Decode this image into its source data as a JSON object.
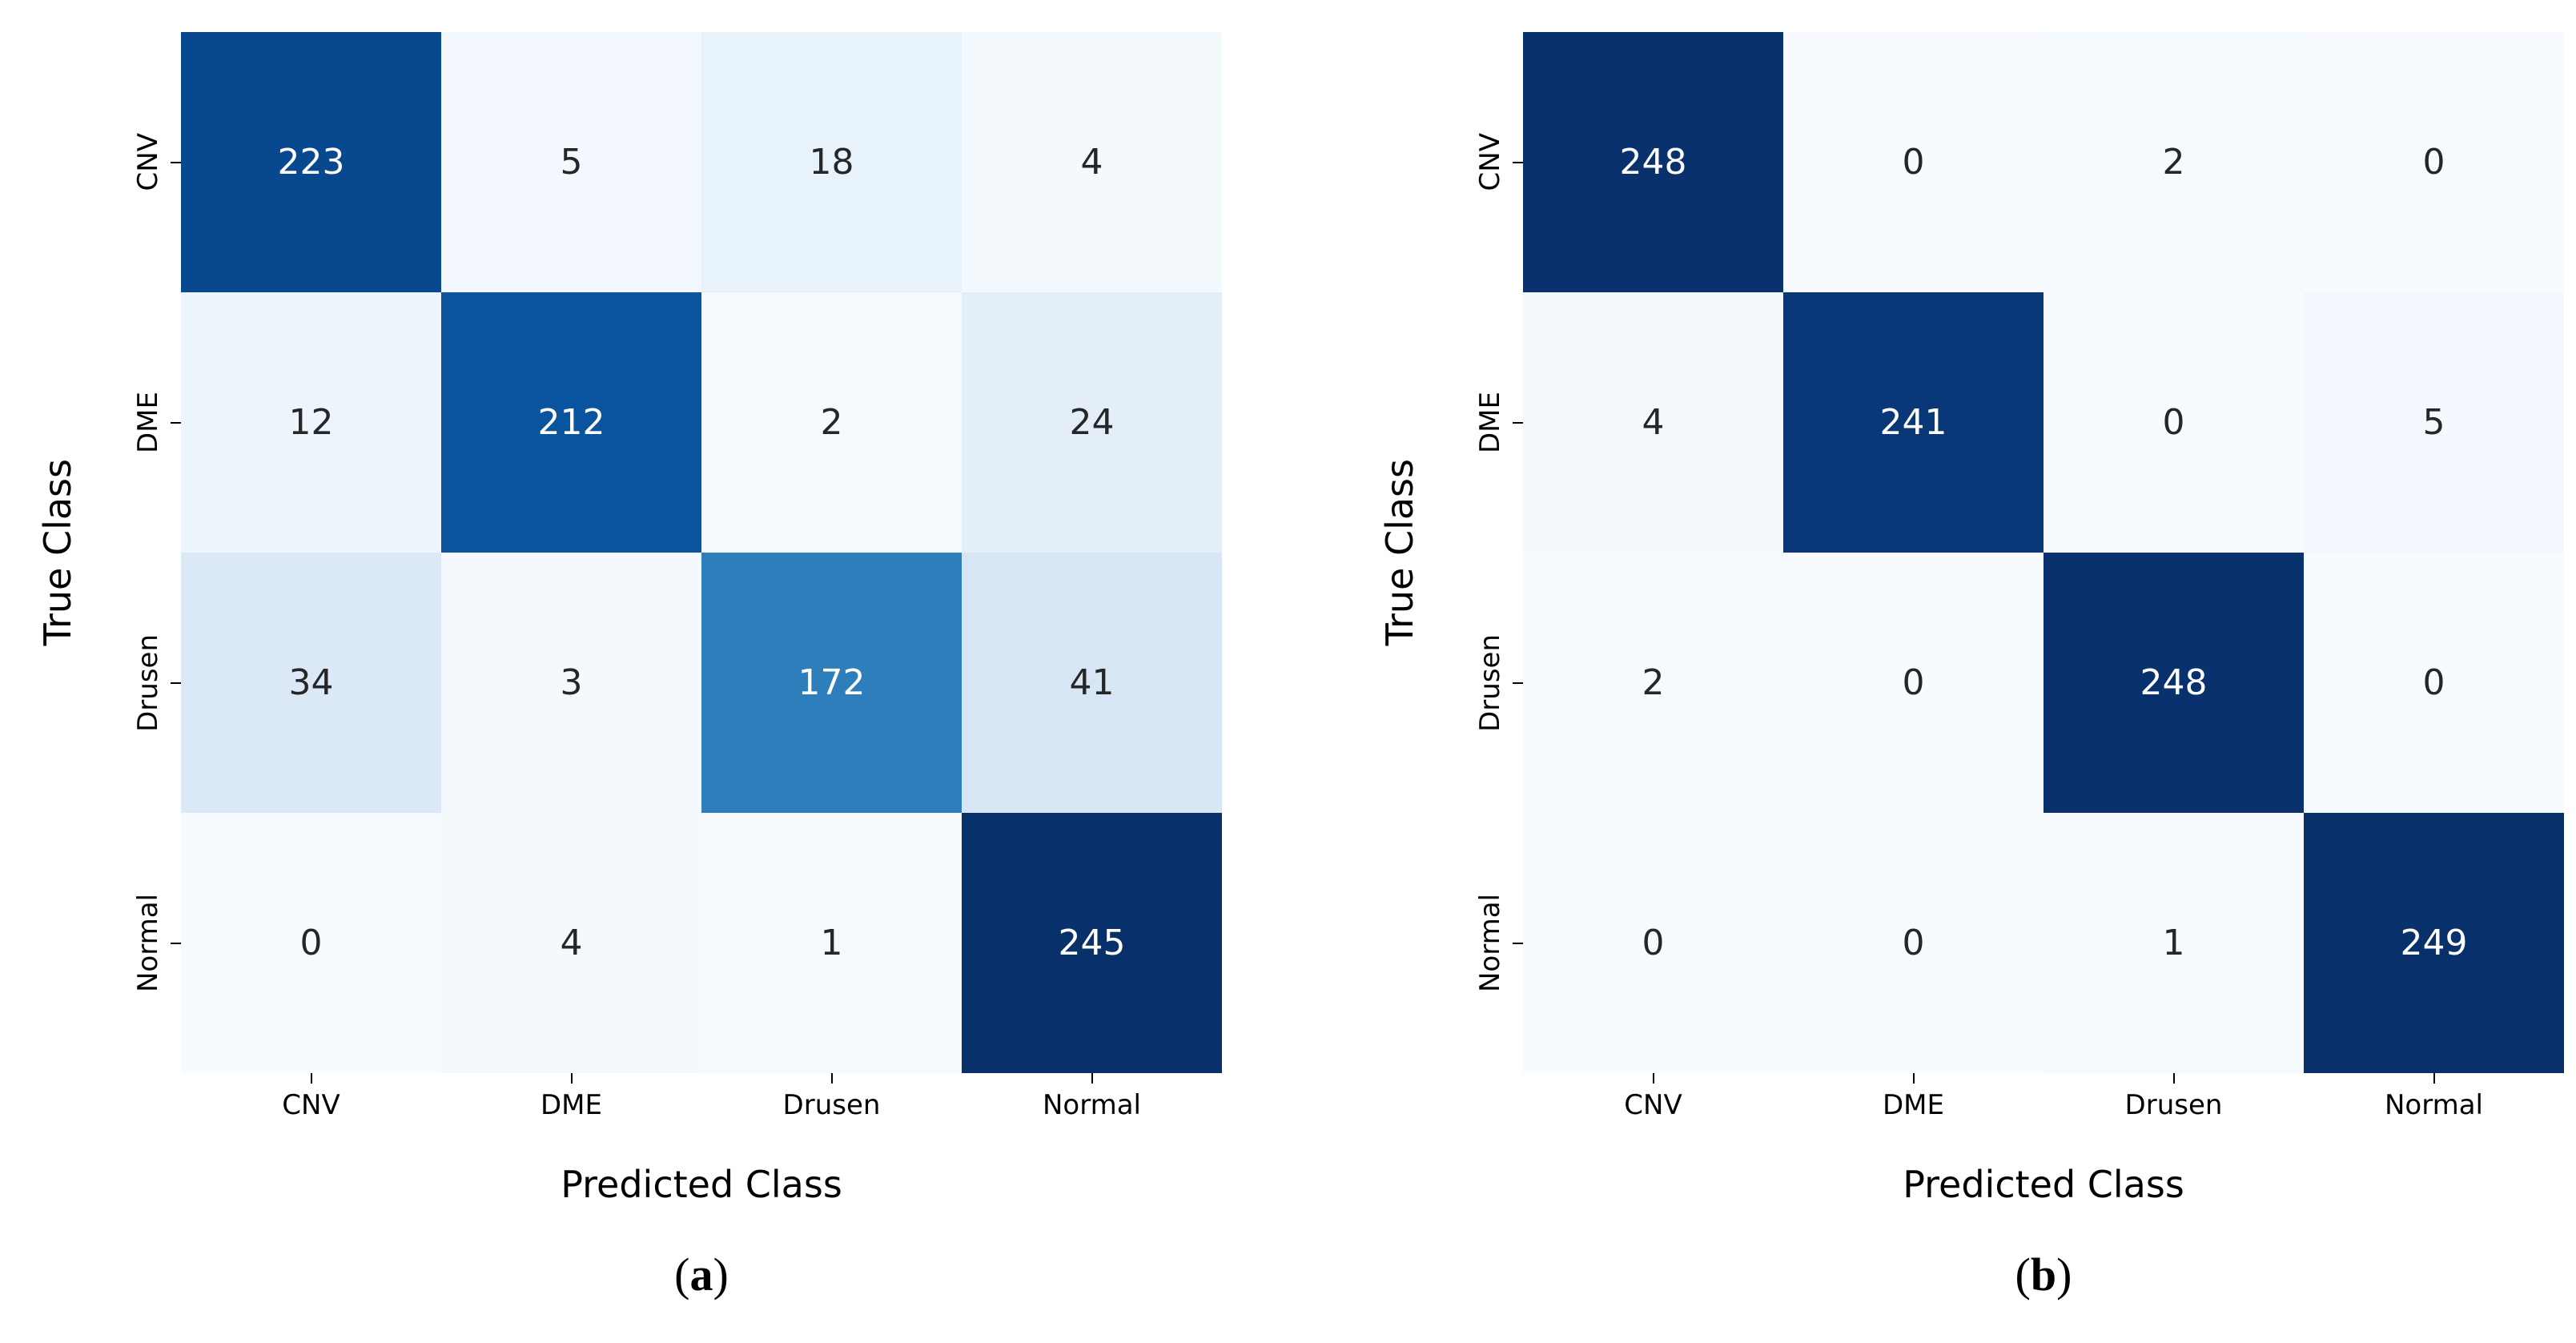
{
  "figure": {
    "background": "#ffffff",
    "classes": [
      "CNV",
      "DME",
      "Drusen",
      "Normal"
    ]
  },
  "chart_data": [
    {
      "type": "heatmap",
      "panel_id": "a",
      "title": "",
      "xlabel": "Predicted Class",
      "ylabel": "True Class",
      "x_categories": [
        "CNV",
        "DME",
        "Drusen",
        "Normal"
      ],
      "y_categories": [
        "CNV",
        "DME",
        "Drusen",
        "Normal"
      ],
      "matrix": [
        [
          223,
          5,
          18,
          4
        ],
        [
          12,
          212,
          2,
          24
        ],
        [
          34,
          3,
          172,
          41
        ],
        [
          0,
          4,
          1,
          245
        ]
      ],
      "vmin": 0,
      "vmax": 245,
      "colormap": "Blues",
      "legend": "none",
      "grid": false,
      "caption_open": "(",
      "caption_letter": "a",
      "caption_close": ")"
    },
    {
      "type": "heatmap",
      "panel_id": "b",
      "title": "",
      "xlabel": "Predicted Class",
      "ylabel": "True Class",
      "x_categories": [
        "CNV",
        "DME",
        "Drusen",
        "Normal"
      ],
      "y_categories": [
        "CNV",
        "DME",
        "Drusen",
        "Normal"
      ],
      "matrix": [
        [
          248,
          0,
          2,
          0
        ],
        [
          4,
          241,
          0,
          5
        ],
        [
          2,
          0,
          248,
          0
        ],
        [
          0,
          0,
          1,
          249
        ]
      ],
      "vmin": 0,
      "vmax": 249,
      "colormap": "Blues",
      "legend": "none",
      "grid": false,
      "caption_open": "(",
      "caption_letter": "b",
      "caption_close": ")"
    }
  ],
  "style": {
    "colormap_stops": [
      "#f7fbff",
      "#deebf7",
      "#c6dbef",
      "#9ecae1",
      "#6baed6",
      "#4292c6",
      "#2171b5",
      "#08519c",
      "#08306b"
    ],
    "annot_dark_color": "#262626",
    "annot_light_color": "#ffffff",
    "tick_color": "#000000"
  }
}
